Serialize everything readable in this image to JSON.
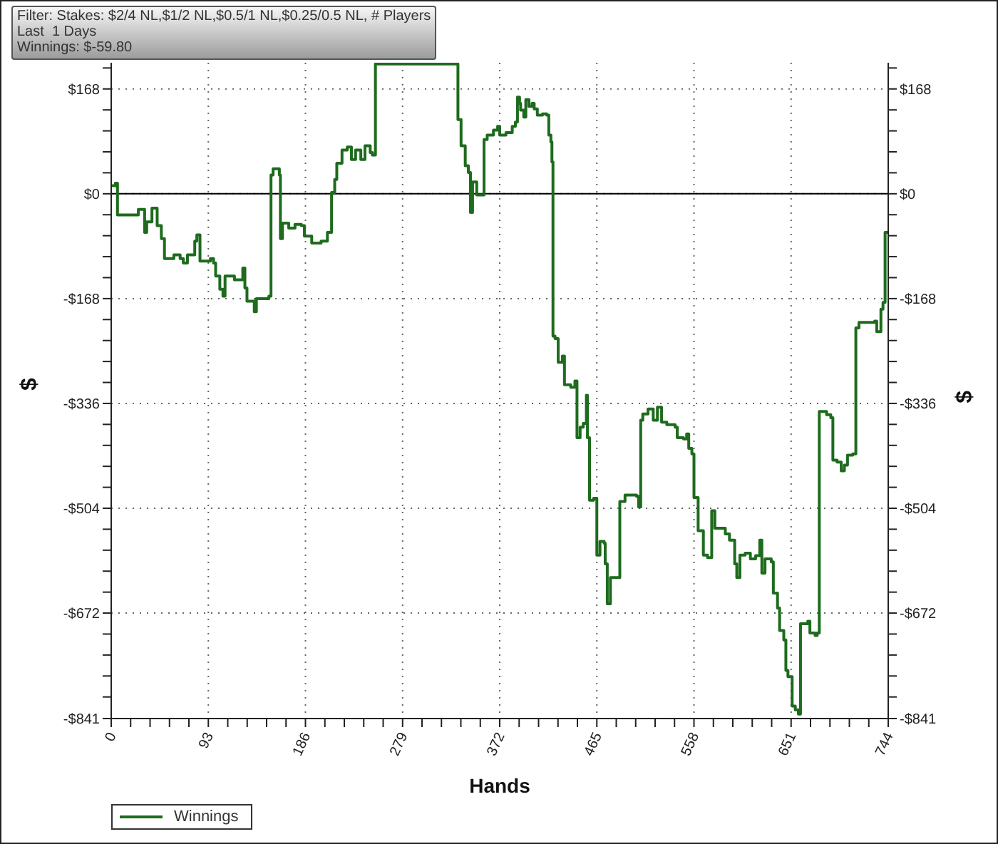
{
  "chart_data": {
    "type": "step",
    "xlabel": "Hands",
    "ylabel": "$",
    "y2label": "$",
    "annotations": [
      "Filter: Stakes: $2/4 NL,$1/2 NL,$0.5/1 NL,$0.25/0.5 NL, # Players",
      "Last  1 Days",
      "Winnings: $-59.80"
    ],
    "x": [
      0,
      4,
      6,
      26,
      32,
      34,
      39,
      44,
      48,
      51,
      60,
      66,
      69,
      73,
      80,
      82,
      85,
      95,
      98,
      100,
      104,
      107,
      109,
      118,
      126,
      128,
      130,
      137,
      139,
      151,
      153,
      155,
      161,
      162,
      164,
      170,
      176,
      182,
      185,
      192,
      201,
      207,
      211,
      214,
      216,
      221,
      226,
      230,
      234,
      239,
      243,
      248,
      250,
      253,
      332,
      335,
      339,
      342,
      344,
      346,
      350,
      357,
      360,
      366,
      370,
      372,
      378,
      384,
      387,
      389,
      391,
      392,
      395,
      397,
      400,
      403,
      405,
      408,
      413,
      417,
      419,
      421,
      422,
      423,
      425,
      428,
      432,
      434,
      440,
      444,
      446,
      449,
      452,
      455,
      456,
      458,
      462,
      465,
      468,
      472,
      473,
      475,
      478,
      487,
      492,
      503,
      505,
      507,
      509,
      514,
      519,
      523,
      527,
      532,
      540,
      542,
      548,
      551,
      553,
      556,
      558,
      562,
      567,
      571,
      575,
      578,
      585,
      588,
      592,
      597,
      599,
      602,
      607,
      612,
      617,
      621,
      623,
      626,
      632,
      634,
      638,
      640,
      644,
      646,
      648,
      652,
      655,
      658,
      660,
      667,
      669,
      674,
      676,
      678,
      685,
      689,
      691,
      695,
      699,
      702,
      705,
      710,
      713,
      716,
      731,
      733,
      737,
      739,
      741,
      744
    ],
    "series": [
      {
        "name": "Winnings",
        "color": "#1e6b1e",
        "values": [
          13,
          17,
          -34,
          -25,
          -62,
          -45,
          -23,
          -51,
          -72,
          -104,
          -98,
          -104,
          -111,
          -98,
          -76,
          -66,
          -108,
          -104,
          -111,
          -132,
          -153,
          -164,
          -132,
          -138,
          -119,
          -151,
          -172,
          -189,
          -168,
          -164,
          30,
          40,
          30,
          -72,
          -47,
          -55,
          -49,
          -51,
          -68,
          -79,
          -76,
          -62,
          2,
          23,
          49,
          70,
          75,
          55,
          70,
          55,
          77,
          66,
          62,
          208,
          119,
          77,
          45,
          34,
          -30,
          19,
          -2,
          87,
          94,
          102,
          108,
          94,
          98,
          108,
          115,
          155,
          145,
          134,
          123,
          151,
          140,
          145,
          136,
          126,
          128,
          126,
          94,
          83,
          51,
          -228,
          -232,
          -270,
          -260,
          -306,
          -310,
          -300,
          -391,
          -374,
          -368,
          -323,
          -391,
          -491,
          -488,
          -579,
          -557,
          -560,
          -593,
          -657,
          -615,
          -493,
          -483,
          -485,
          -502,
          -363,
          -353,
          -345,
          -363,
          -342,
          -366,
          -370,
          -374,
          -391,
          -393,
          -385,
          -408,
          -417,
          -487,
          -540,
          -579,
          -583,
          -508,
          -536,
          -536,
          -545,
          -555,
          -593,
          -615,
          -579,
          -576,
          -585,
          -580,
          -555,
          -608,
          -585,
          -590,
          -640,
          -664,
          -700,
          -715,
          -764,
          -774,
          -821,
          -827,
          -834,
          -689,
          -685,
          -704,
          -708,
          -704,
          -349,
          -354,
          -359,
          -427,
          -430,
          -444,
          -435,
          -419,
          -417,
          -215,
          -206,
          -204,
          -221,
          -185,
          -174,
          -62,
          -60
        ]
      }
    ],
    "xlim": [
      0,
      744
    ],
    "xticks": [
      0,
      {
        "value": 18.6,
        "label": null
      },
      {
        "value": 37.2,
        "label": null
      },
      {
        "value": 55.8,
        "label": null
      },
      {
        "value": 74.4,
        "label": null
      },
      93,
      {
        "value": 111.6,
        "label": null
      },
      {
        "value": 130.2,
        "label": null
      },
      {
        "value": 148.8,
        "label": null
      },
      {
        "value": 167.4,
        "label": null
      },
      186,
      {
        "value": 204.6,
        "label": null
      },
      {
        "value": 223.2,
        "label": null
      },
      {
        "value": 241.8,
        "label": null
      },
      {
        "value": 260.4,
        "label": null
      },
      279,
      {
        "value": 297.6,
        "label": null
      },
      {
        "value": 316.2,
        "label": null
      },
      {
        "value": 334.8,
        "label": null
      },
      {
        "value": 353.4,
        "label": null
      },
      372,
      {
        "value": 390.6,
        "label": null
      },
      {
        "value": 409.2,
        "label": null
      },
      {
        "value": 427.8,
        "label": null
      },
      {
        "value": 446.4,
        "label": null
      },
      465,
      {
        "value": 483.6,
        "label": null
      },
      {
        "value": 502.2,
        "label": null
      },
      {
        "value": 520.8,
        "label": null
      },
      {
        "value": 539.4,
        "label": null
      },
      558,
      {
        "value": 576.6,
        "label": null
      },
      {
        "value": 595.2,
        "label": null
      },
      {
        "value": 613.8,
        "label": null
      },
      {
        "value": 632.4,
        "label": null
      },
      651,
      {
        "value": 669.6,
        "label": null
      },
      {
        "value": 688.2,
        "label": null
      },
      {
        "value": 706.8,
        "label": null
      },
      {
        "value": 725.4,
        "label": null
      },
      744
    ],
    "ylim": [
      -841,
      210
    ],
    "yticks": [
      {
        "value": -841,
        "label": "-$841"
      },
      {
        "value": -806.4,
        "label": null
      },
      {
        "value": -772.8,
        "label": null
      },
      {
        "value": -739.2,
        "label": null
      },
      {
        "value": -705.6,
        "label": null
      },
      {
        "value": -672,
        "label": "-$672"
      },
      {
        "value": -638.4,
        "label": null
      },
      {
        "value": -604.8,
        "label": null
      },
      {
        "value": -571.2,
        "label": null
      },
      {
        "value": -537.6,
        "label": null
      },
      {
        "value": -504,
        "label": "-$504"
      },
      {
        "value": -470.4,
        "label": null
      },
      {
        "value": -436.8,
        "label": null
      },
      {
        "value": -403.2,
        "label": null
      },
      {
        "value": -369.6,
        "label": null
      },
      {
        "value": -336,
        "label": "-$336"
      },
      {
        "value": -302.4,
        "label": null
      },
      {
        "value": -268.8,
        "label": null
      },
      {
        "value": -235.2,
        "label": null
      },
      {
        "value": -201.6,
        "label": null
      },
      {
        "value": -168,
        "label": "-$168"
      },
      {
        "value": -134.4,
        "label": null
      },
      {
        "value": -100.8,
        "label": null
      },
      {
        "value": -67.2,
        "label": null
      },
      {
        "value": -33.6,
        "label": null
      },
      {
        "value": 0,
        "label": "$0"
      },
      {
        "value": 33.6,
        "label": null
      },
      {
        "value": 67.2,
        "label": null
      },
      {
        "value": 100.8,
        "label": null
      },
      {
        "value": 134.4,
        "label": null
      },
      {
        "value": 168,
        "label": "$168"
      },
      {
        "value": 201.6,
        "label": null
      }
    ],
    "y2lim": [
      -841,
      210
    ],
    "y2ticks": [
      {
        "value": -841,
        "label": "-$841"
      },
      {
        "value": -806.4,
        "label": null
      },
      {
        "value": -772.8,
        "label": null
      },
      {
        "value": -739.2,
        "label": null
      },
      {
        "value": -705.6,
        "label": null
      },
      {
        "value": -672,
        "label": "-$672"
      },
      {
        "value": -638.4,
        "label": null
      },
      {
        "value": -604.8,
        "label": null
      },
      {
        "value": -571.2,
        "label": null
      },
      {
        "value": -537.6,
        "label": null
      },
      {
        "value": -504,
        "label": "-$504"
      },
      {
        "value": -470.4,
        "label": null
      },
      {
        "value": -436.8,
        "label": null
      },
      {
        "value": -403.2,
        "label": null
      },
      {
        "value": -369.6,
        "label": null
      },
      {
        "value": -336,
        "label": "-$336"
      },
      {
        "value": -302.4,
        "label": null
      },
      {
        "value": -268.8,
        "label": null
      },
      {
        "value": -235.2,
        "label": null
      },
      {
        "value": -201.6,
        "label": null
      },
      {
        "value": -168,
        "label": "-$168"
      },
      {
        "value": -134.4,
        "label": null
      },
      {
        "value": -100.8,
        "label": null
      },
      {
        "value": -67.2,
        "label": null
      },
      {
        "value": -33.6,
        "label": null
      },
      {
        "value": 0,
        "label": "$0"
      },
      {
        "value": 33.6,
        "label": null
      },
      {
        "value": 67.2,
        "label": null
      },
      {
        "value": 100.8,
        "label": null
      },
      {
        "value": 134.4,
        "label": null
      },
      {
        "value": 168,
        "label": "$168"
      },
      {
        "value": 201.6,
        "label": null
      }
    ],
    "ref_lines": [
      {
        "axis": "y",
        "value": 0,
        "color": "#000000"
      }
    ],
    "grid": true,
    "legend": "bottom left",
    "marker": "none",
    "line_style": "solid"
  }
}
